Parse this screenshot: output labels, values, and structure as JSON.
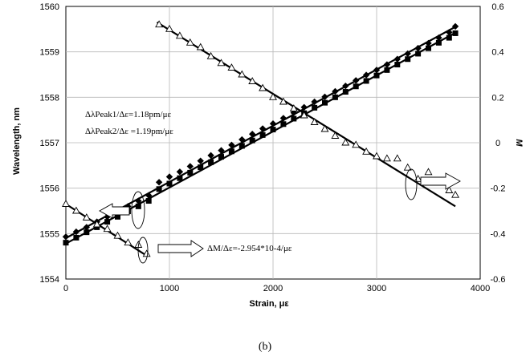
{
  "chart_data": {
    "type": "scatter",
    "xlabel": "Strain, με",
    "ylabel": "Wavelength, nm",
    "y2label": "M",
    "xlim": [
      0,
      4000
    ],
    "ylim": [
      1554,
      1560
    ],
    "y2lim": [
      -0.6,
      0.6
    ],
    "x_ticks": [
      "0",
      "1000",
      "2000",
      "3000",
      "4000"
    ],
    "y_ticks": [
      "1554",
      "1555",
      "1556",
      "1557",
      "1558",
      "1559",
      "1560"
    ],
    "y2_ticks": [
      "-0.6",
      "-0.4",
      "-0.2",
      "0",
      "0.2",
      "0.4",
      "0.6"
    ],
    "grid": true,
    "caption": "(b)",
    "annotations": {
      "peak1_text": "ΔλPeak1/Δε=1.18pm/με",
      "peak2_text": "ΔλPeak2/Δε =1.19pm/με",
      "m_text": "ΔM/Δε=-2.954*10-4/με"
    },
    "series": [
      {
        "marker": "diamond",
        "axis": "left",
        "x": [
          0,
          100,
          200,
          300,
          400,
          500,
          600,
          700,
          800,
          900,
          1000,
          1100,
          1200,
          1300,
          1400,
          1500,
          1600,
          1700,
          1800,
          1900,
          2000,
          2100,
          2200,
          2300,
          2400,
          2500,
          2600,
          2700,
          2800,
          2900,
          3000,
          3100,
          3200,
          3300,
          3400,
          3500,
          3600,
          3700,
          3760
        ],
        "values": [
          1554.93,
          1555.04,
          1555.14,
          1555.26,
          1555.37,
          1555.49,
          1555.6,
          1555.72,
          1555.84,
          1556.13,
          1556.25,
          1556.36,
          1556.48,
          1556.6,
          1556.72,
          1556.83,
          1556.95,
          1557.07,
          1557.19,
          1557.31,
          1557.42,
          1557.54,
          1557.66,
          1557.78,
          1557.9,
          1558.01,
          1558.13,
          1558.25,
          1558.37,
          1558.49,
          1558.6,
          1558.72,
          1558.84,
          1558.96,
          1559.08,
          1559.19,
          1559.31,
          1559.43,
          1559.56
        ]
      },
      {
        "marker": "square",
        "axis": "left",
        "x": [
          0,
          100,
          200,
          300,
          400,
          500,
          600,
          700,
          800,
          900,
          1000,
          1100,
          1200,
          1300,
          1400,
          1500,
          1600,
          1700,
          1800,
          1900,
          2000,
          2100,
          2200,
          2300,
          2400,
          2500,
          2600,
          2700,
          2800,
          2900,
          3000,
          3100,
          3200,
          3300,
          3400,
          3500,
          3600,
          3700,
          3760
        ],
        "values": [
          1554.8,
          1554.91,
          1555.03,
          1555.14,
          1555.26,
          1555.37,
          1555.49,
          1555.6,
          1555.72,
          1555.98,
          1556.1,
          1556.22,
          1556.34,
          1556.46,
          1556.57,
          1556.69,
          1556.81,
          1556.93,
          1557.05,
          1557.17,
          1557.29,
          1557.41,
          1557.53,
          1557.65,
          1557.77,
          1557.88,
          1558.0,
          1558.12,
          1558.24,
          1558.36,
          1558.48,
          1558.6,
          1558.72,
          1558.84,
          1558.96,
          1559.08,
          1559.2,
          1559.31,
          1559.41
        ]
      },
      {
        "marker": "triangle",
        "axis": "right",
        "x": [
          0,
          100,
          200,
          300,
          400,
          500,
          600,
          700,
          780,
          900,
          1000,
          1100,
          1200,
          1300,
          1400,
          1500,
          1600,
          1700,
          1800,
          1900,
          2000,
          2100,
          2200,
          2300,
          2400,
          2500,
          2600,
          2700,
          2800,
          2900,
          3000,
          3100,
          3200,
          3300,
          3400,
          3500,
          3600,
          3700,
          3760
        ],
        "values": [
          -0.27,
          -0.3,
          -0.33,
          -0.36,
          -0.38,
          -0.41,
          -0.44,
          -0.45,
          -0.49,
          0.52,
          0.5,
          0.47,
          0.44,
          0.42,
          0.38,
          0.35,
          0.33,
          0.3,
          0.27,
          0.24,
          0.2,
          0.18,
          0.15,
          0.12,
          0.09,
          0.06,
          0.03,
          0.0,
          -0.01,
          -0.04,
          -0.06,
          -0.07,
          -0.07,
          -0.11,
          -0.16,
          -0.13,
          -0.17,
          -0.21,
          -0.23
        ]
      }
    ],
    "fit_lines": [
      {
        "axis": "left",
        "x": [
          0,
          3760
        ],
        "y": [
          1554.9,
          1559.55
        ]
      },
      {
        "axis": "left",
        "x": [
          0,
          3760
        ],
        "y": [
          1554.78,
          1559.42
        ]
      },
      {
        "axis": "right",
        "x": [
          0,
          790
        ],
        "y": [
          -0.27,
          -0.5
        ]
      },
      {
        "axis": "right",
        "x": [
          880,
          3760
        ],
        "y": [
          0.53,
          -0.28
        ]
      }
    ]
  }
}
